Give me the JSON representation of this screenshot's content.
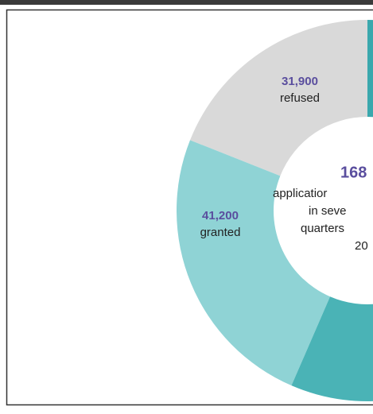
{
  "chart_data": {
    "type": "donut",
    "categories": [
      "refused",
      "granted",
      null,
      null
    ],
    "values": [
      31900,
      41200,
      30000,
      65000
    ],
    "value_labels": [
      "31,900",
      "41,200",
      null,
      null
    ],
    "colors": [
      "#d9d9d9",
      "#8fd3d5",
      "#4ab3b6",
      "#3aa8ad"
    ],
    "center_label": [
      "168",
      "applicatior",
      "in seve",
      "quarters",
      "20"
    ]
  }
}
